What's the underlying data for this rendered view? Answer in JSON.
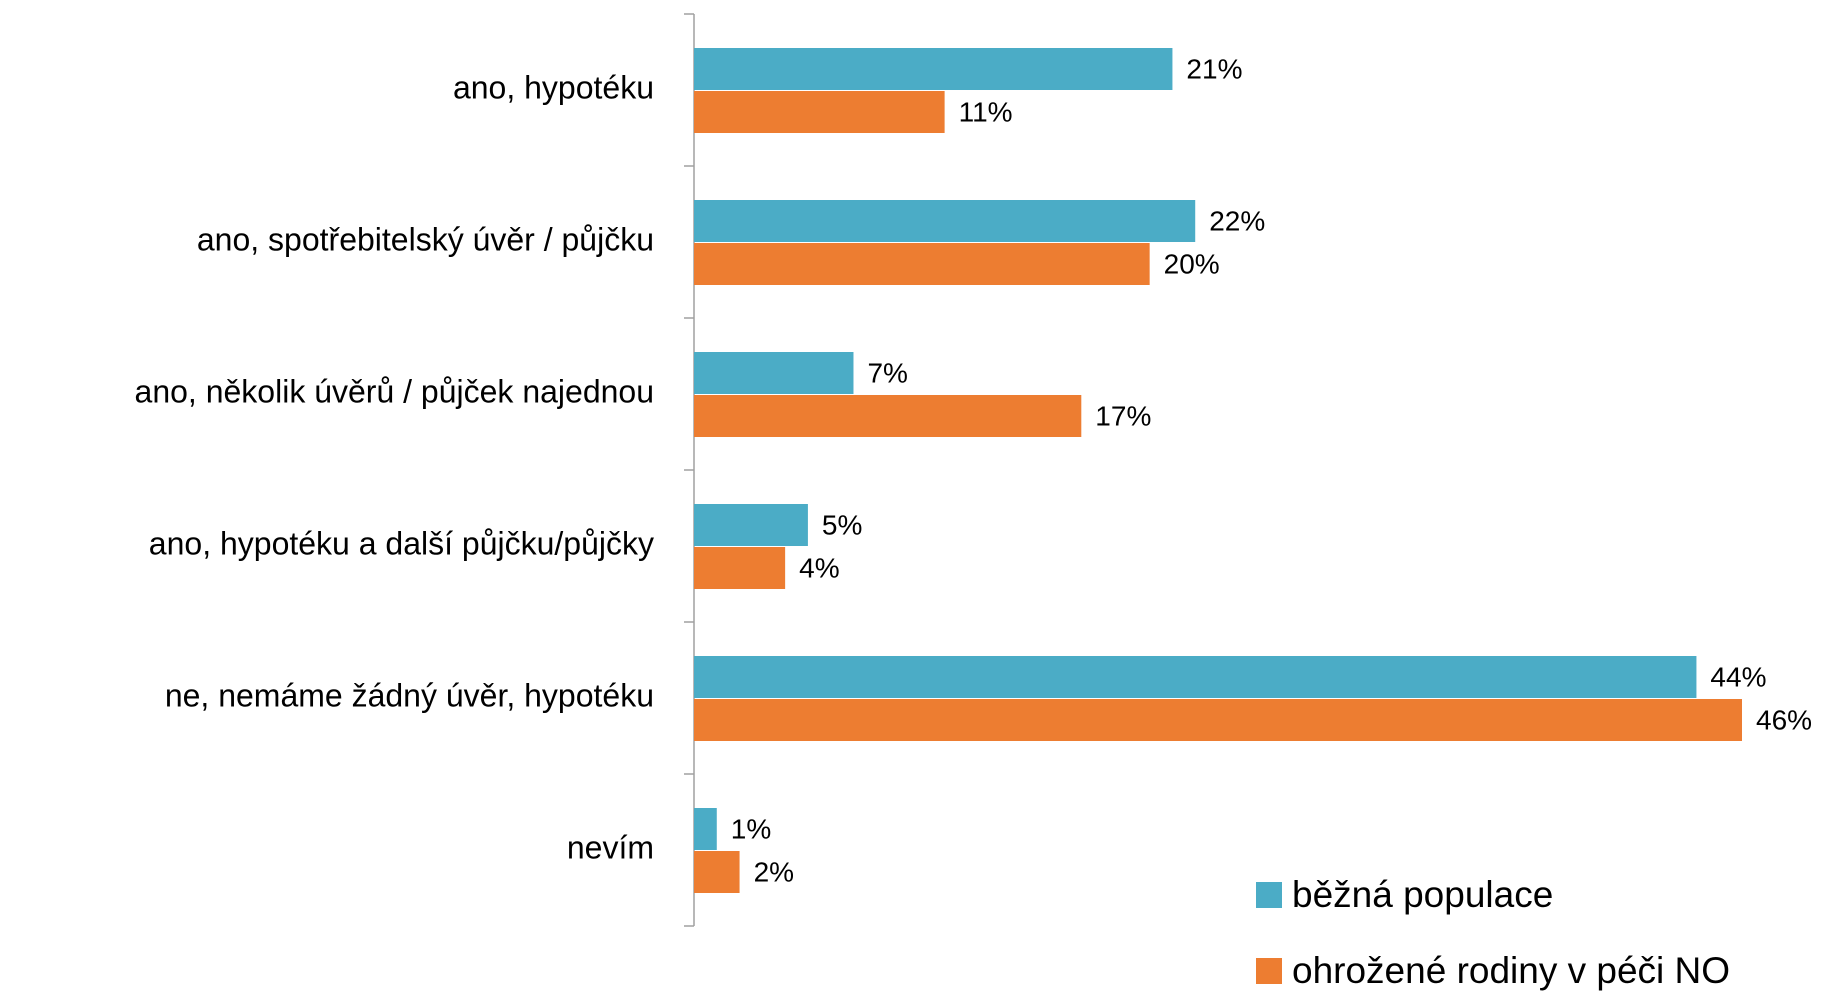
{
  "chart_data": {
    "type": "barh",
    "categories": [
      "ano, hypotéku",
      "ano, spotřebitelský úvěr / půjčku",
      "ano, několik úvěrů / půjček najednou",
      "ano, hypotéku a další půjčku/půjčky",
      "ne, nemáme žádný úvěr, hypotéku",
      "nevím"
    ],
    "series": [
      {
        "name": "běžná populace",
        "color": "#4bacc6",
        "values": [
          21,
          22,
          7,
          5,
          44,
          1
        ],
        "value_labels": [
          "21%",
          "22%",
          "7%",
          "5%",
          "44%",
          "1%"
        ]
      },
      {
        "name": "ohrožené rodiny v péči NO",
        "color": "#ed7d31",
        "values": [
          11,
          20,
          17,
          4,
          46,
          2
        ],
        "value_labels": [
          "11%",
          "20%",
          "17%",
          "4%",
          "46%",
          "2%"
        ]
      }
    ],
    "legend": "lower right"
  }
}
